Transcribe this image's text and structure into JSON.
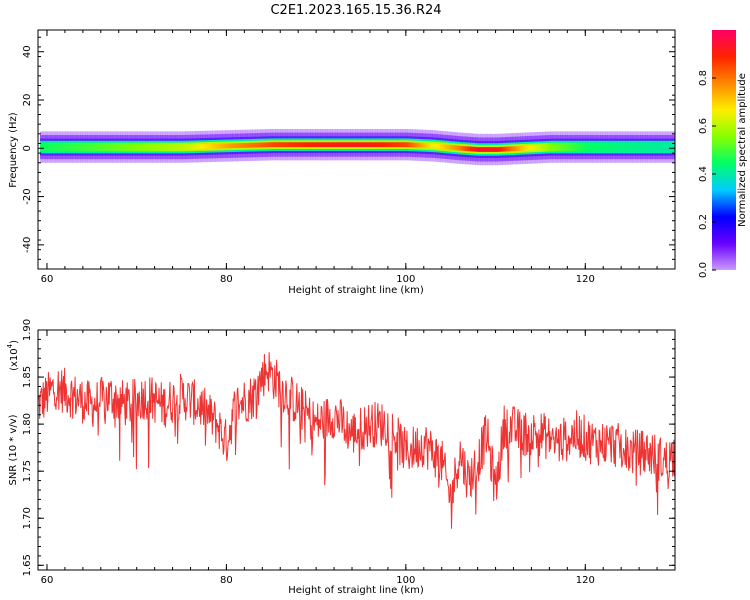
{
  "title": "C2E1.2023.165.15.36.R24",
  "chart_data": [
    {
      "type": "heatmap",
      "xlabel": "Height of straight line (km)",
      "ylabel": "Frequency (Hz)",
      "xlim": [
        59,
        130
      ],
      "ylim": [
        -50,
        49
      ],
      "xticks": [
        60,
        80,
        100,
        120
      ],
      "yticks": [
        -40,
        -20,
        0,
        20,
        40
      ],
      "colorbar": {
        "label": "Normalized spectral amplitude",
        "range": [
          0,
          1
        ],
        "ticks": [
          "0.0",
          "0.2",
          "0.4",
          "0.6",
          "0.8"
        ],
        "colormap": [
          "#cc99ff",
          "#6600ff",
          "#0000ff",
          "#00ccff",
          "#00ff66",
          "#88ff00",
          "#ffee00",
          "#ff8800",
          "#ff2200",
          "#ff0066"
        ]
      },
      "band": {
        "height_km": [
          59,
          65,
          70,
          75,
          80,
          85,
          90,
          95,
          100,
          103,
          106,
          108,
          110,
          113,
          116,
          120,
          125,
          130
        ],
        "center_hz": [
          0.5,
          0.5,
          0.5,
          0.5,
          1,
          1.5,
          1.5,
          1.5,
          1.5,
          1,
          0,
          -0.5,
          -0.5,
          0,
          0.5,
          0.5,
          0.5,
          0.5
        ],
        "peak_amplitude": [
          0.45,
          0.5,
          0.55,
          0.6,
          0.75,
          0.85,
          0.9,
          0.92,
          0.85,
          0.65,
          0.8,
          0.95,
          0.92,
          0.7,
          0.55,
          0.45,
          0.42,
          0.4
        ]
      }
    },
    {
      "type": "line",
      "xlabel": "Height of straight line (km)",
      "ylabel": "SNR (10 * v/v)",
      "y_multiplier": "(x10",
      "y_multiplier_exp": "4",
      "y_multiplier_close": ")",
      "xlim": [
        59,
        130
      ],
      "ylim": [
        1.645,
        1.9
      ],
      "xticks": [
        60,
        80,
        100,
        120
      ],
      "yticks": [
        "1.65",
        "1.70",
        "1.75",
        "1.80",
        "1.85",
        "1.90"
      ],
      "color": "#ee3333",
      "series": [
        {
          "x": [
            59,
            61,
            63,
            65,
            67,
            69,
            71,
            73,
            75,
            77,
            79,
            80,
            81,
            83,
            84.5,
            86,
            88,
            90,
            92,
            94,
            96,
            98,
            100,
            102,
            104,
            105,
            106,
            107,
            108,
            109,
            110,
            111,
            113,
            115,
            117,
            119,
            121,
            123,
            125,
            127,
            129,
            130
          ],
          "y": [
            1.82,
            1.84,
            1.83,
            1.82,
            1.83,
            1.82,
            1.83,
            1.82,
            1.83,
            1.82,
            1.8,
            1.78,
            1.82,
            1.83,
            1.86,
            1.84,
            1.82,
            1.8,
            1.81,
            1.79,
            1.8,
            1.8,
            1.77,
            1.78,
            1.76,
            1.72,
            1.77,
            1.74,
            1.76,
            1.79,
            1.73,
            1.8,
            1.79,
            1.79,
            1.78,
            1.79,
            1.78,
            1.78,
            1.77,
            1.77,
            1.76,
            1.77
          ]
        }
      ]
    }
  ]
}
